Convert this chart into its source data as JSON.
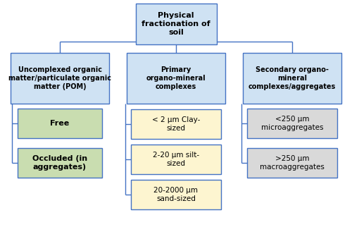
{
  "bg_color": "#ffffff",
  "box_colors": {
    "root": "#cfe2f3",
    "level2": "#cfe2f3",
    "left_children": "#c9ddb0",
    "mid_children": "#fdf5d0",
    "right_children": "#d9d9d9"
  },
  "border_color": "#4472c4",
  "text_color": "#000000",
  "root_text": "Physical\nfractionation of\nsoil",
  "level2": [
    "Uncomplexed organic\nmatter/particulate organic\nmatter (POM)",
    "Primary\norgano-mineral\ncomplexes",
    "Secondary organo-\nmineral\ncomplexes/aggregates"
  ],
  "left_children": [
    "Free",
    "Occluded (in\naggregates)"
  ],
  "mid_children": [
    "< 2 μm Clay-\nsized",
    "2-20 μm silt-\nsized",
    "20-2000 μm\nsand-sized"
  ],
  "right_children": [
    "<250 μm\nmicroaggregates",
    ">250 μm\nmacroaggregates"
  ],
  "figsize": [
    5.0,
    3.39
  ],
  "dpi": 100
}
